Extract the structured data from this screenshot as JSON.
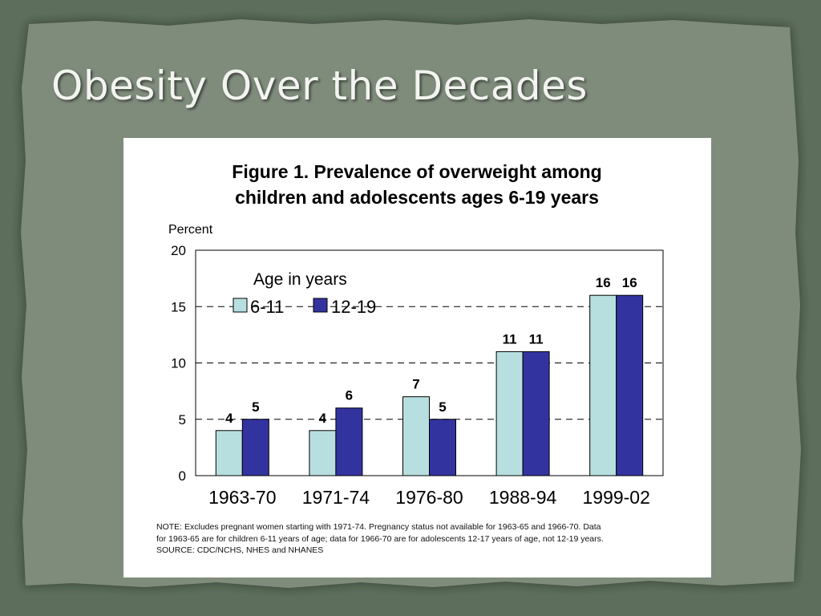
{
  "slide": {
    "title": "Obesity Over the Decades",
    "colors": {
      "background": "#5e6e5c",
      "paper": "#7f8c7c",
      "title_text": "#f2f4ef"
    }
  },
  "chart_data": {
    "type": "bar",
    "title": "Figure 1. Prevalence of overweight among children and adolescents ages 6-19 years",
    "title_lines": [
      "Figure 1. Prevalence of overweight among",
      "children and adolescents ages 6-19 years"
    ],
    "ylabel": "Percent",
    "xlabel": "",
    "ylim": [
      0,
      20
    ],
    "yticks": [
      0,
      5,
      10,
      15,
      20
    ],
    "grid": "dashed horizontal at 5, 10, 15",
    "categories": [
      "1963-70",
      "1971-74",
      "1976-80",
      "1988-94",
      "1999-02"
    ],
    "legend": {
      "title": "Age in years",
      "placement": "top-left"
    },
    "series": [
      {
        "name": "6-11",
        "color": "#b8dfe0",
        "values": [
          4,
          4,
          7,
          11,
          16
        ]
      },
      {
        "name": "12-19",
        "color": "#3333a0",
        "values": [
          5,
          6,
          5,
          11,
          16
        ]
      }
    ],
    "notes": [
      "NOTE:  Excludes pregnant women starting with 1971-74.  Pregnancy status not available for 1963-65 and 1966-70.  Data",
      "for 1963-65 are for children 6-11 years of age; data for 1966-70 are for adolescents 12-17 years of age, not 12-19 years.",
      "SOURCE: CDC/NCHS, NHES and NHANES"
    ]
  }
}
